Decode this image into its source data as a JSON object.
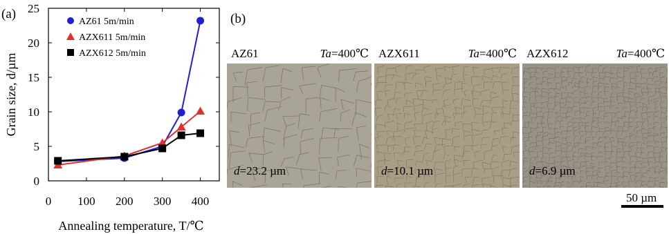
{
  "figure": {
    "panel_a_label": "(a)",
    "panel_b_label": "(b)",
    "scale_bar_label": "50 µm"
  },
  "chart_data": {
    "type": "line",
    "ylabel": "Grain size, d/µm",
    "xlabel": "Annealing temperature, T/℃",
    "xlim": [
      0,
      450
    ],
    "ylim": [
      0,
      25
    ],
    "xticks": [
      0,
      100,
      200,
      300,
      400
    ],
    "yticks": [
      0,
      5,
      10,
      15,
      20,
      25
    ],
    "grid": false,
    "legend_position": "top-left",
    "series": [
      {
        "name": "AZ61 5m/min",
        "color": "#1f1fd6",
        "marker": "circle",
        "x": [
          25,
          200,
          300,
          350,
          400
        ],
        "y": [
          2.8,
          3.3,
          5.0,
          9.9,
          23.2
        ]
      },
      {
        "name": "AZX611 5m/min",
        "color": "#e03030",
        "marker": "triangle",
        "x": [
          25,
          200,
          300,
          350,
          400
        ],
        "y": [
          2.3,
          3.6,
          5.5,
          7.8,
          10.1
        ]
      },
      {
        "name": "AZX612 5m/min",
        "color": "#000000",
        "marker": "square",
        "x": [
          25,
          200,
          300,
          350,
          400
        ],
        "y": [
          2.9,
          3.5,
          4.7,
          6.6,
          6.9
        ]
      }
    ]
  },
  "micrographs": [
    {
      "alloy": "AZ61",
      "condition": "Ta=400℃",
      "cond_var": "Ta",
      "cond_val": "=400℃",
      "grain": "d=23.2 µm",
      "grain_var": "d",
      "grain_val": "=23.2 µm",
      "tone": "#a9a596"
    },
    {
      "alloy": "AZX611",
      "condition": "Ta=400℃",
      "cond_var": "Ta",
      "cond_val": "=400℃",
      "grain": "d=10.1 µm",
      "grain_var": "d",
      "grain_val": "=10.1 µm",
      "tone": "#a99e85"
    },
    {
      "alloy": "AZX612",
      "condition": "Ta=400℃",
      "cond_var": "Ta",
      "cond_val": "=400℃",
      "grain": "d=6.9 µm",
      "grain_var": "d",
      "grain_val": "=6.9 µm",
      "tone": "#999287"
    }
  ]
}
